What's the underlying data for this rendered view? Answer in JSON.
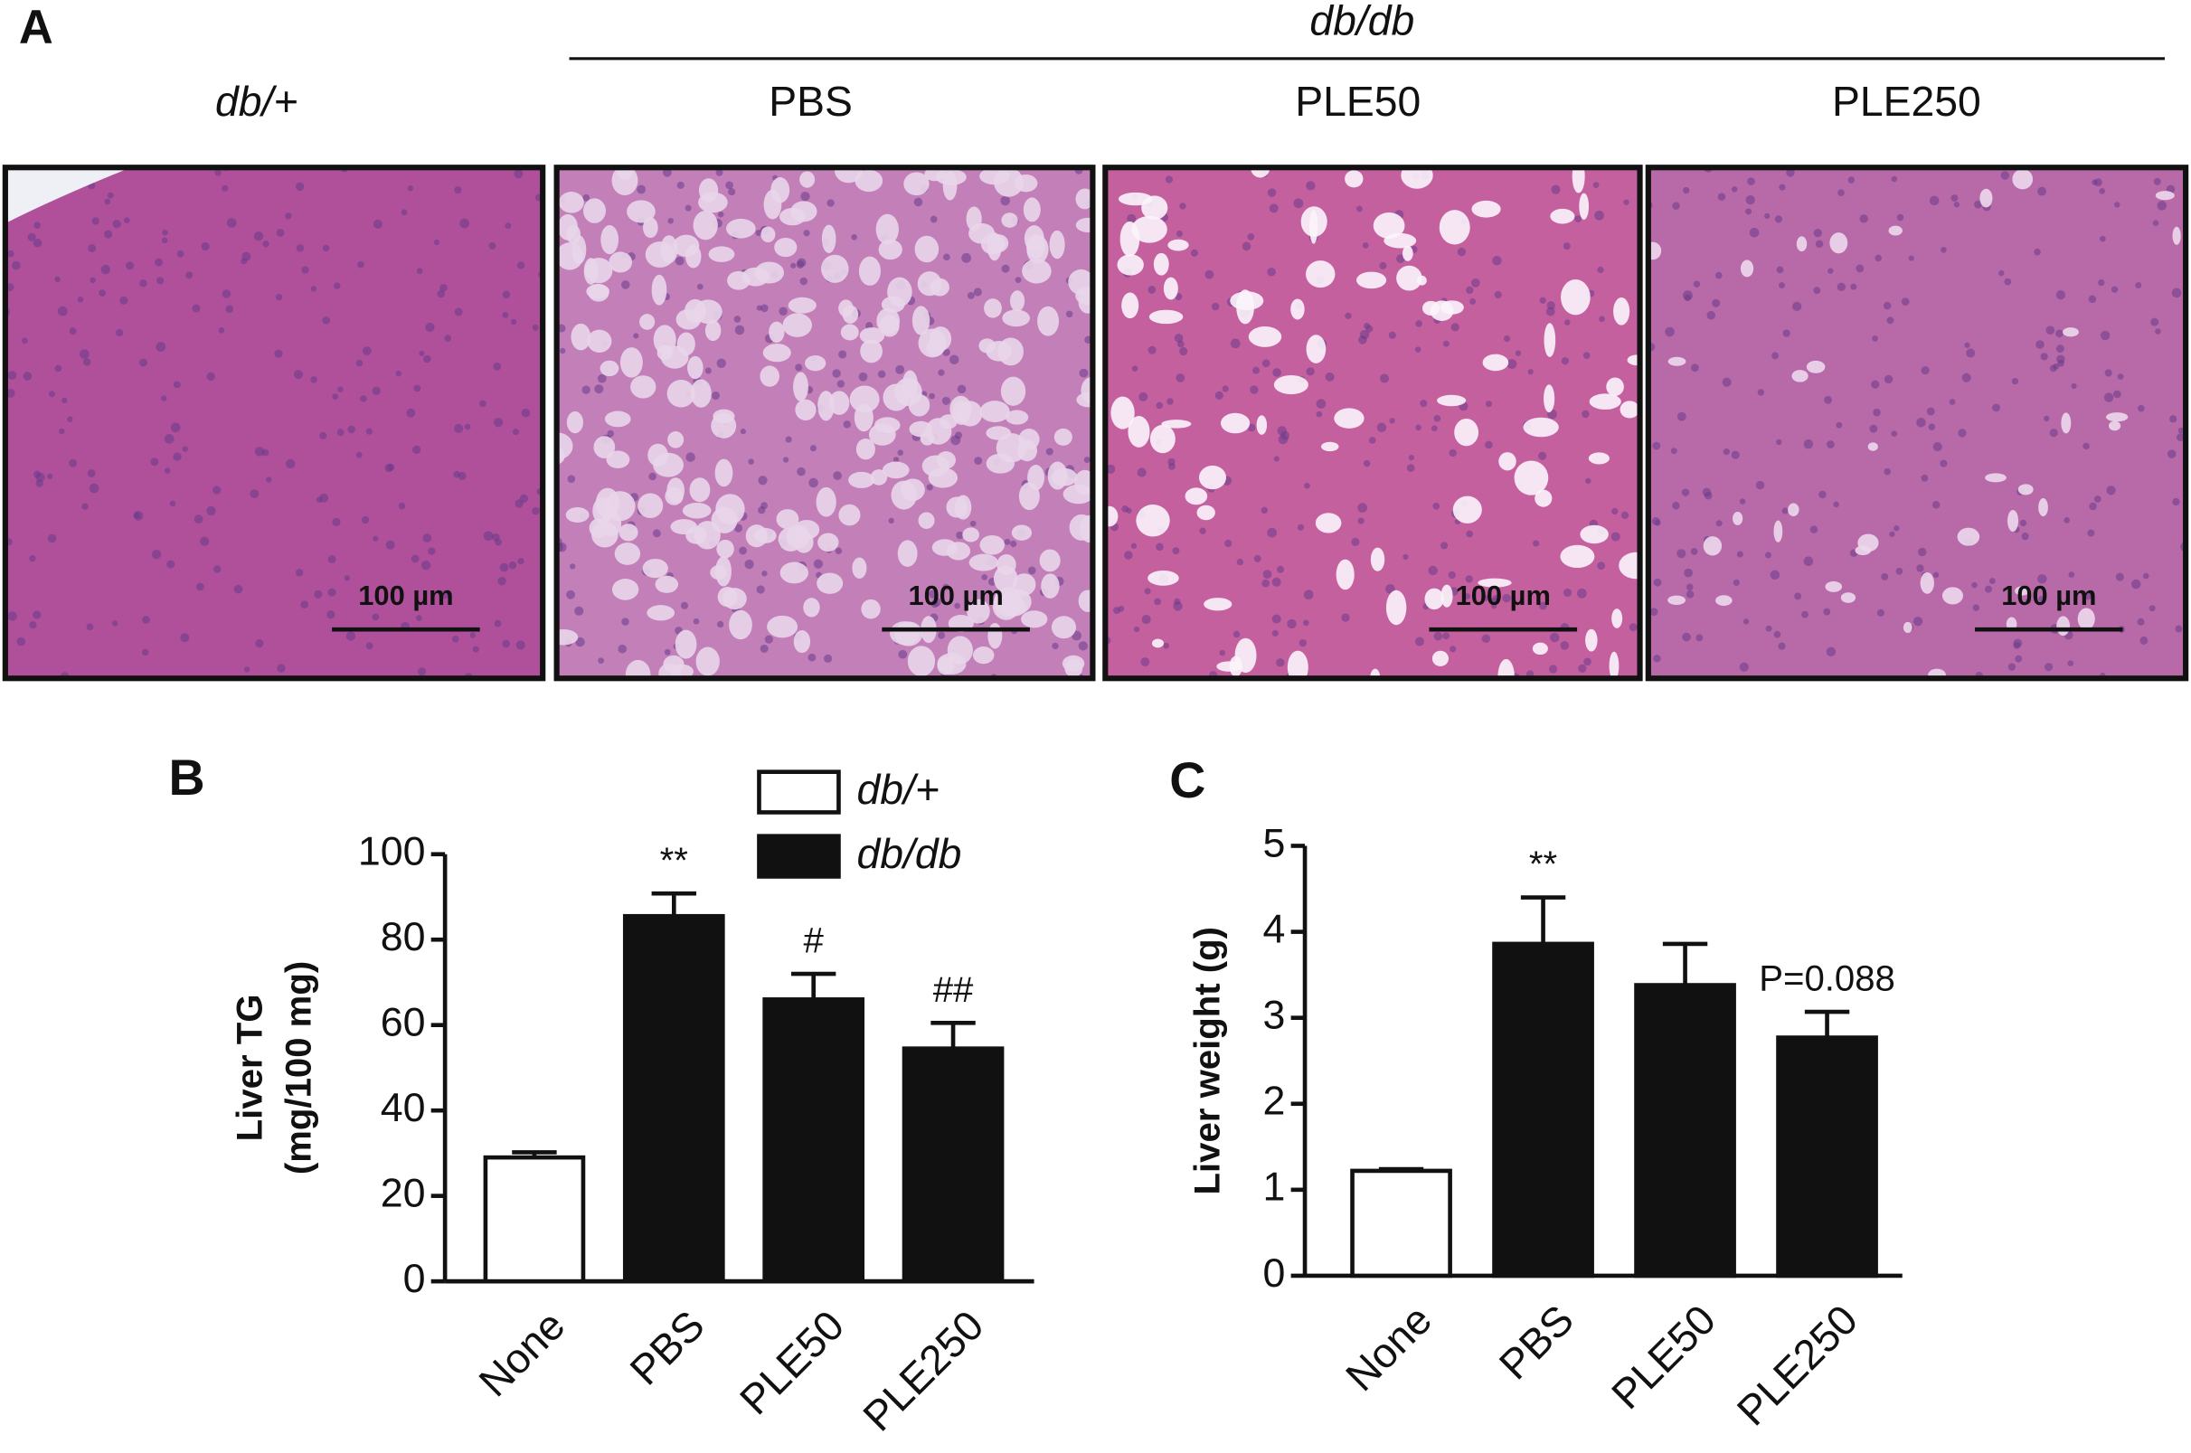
{
  "panel_a": {
    "panel": "A",
    "group": "db/db",
    "columns": [
      "db/+",
      "PBS",
      "PLE50",
      "PLE250"
    ],
    "scale_bars": [
      "100 µm",
      "100 µm",
      "100 µm",
      "100 µm"
    ]
  },
  "chart_data": [
    {
      "type": "bar",
      "panel": "B",
      "ylabel": [
        "Liver TG",
        "(mg/100 mg)"
      ],
      "categories": [
        "None",
        "PBS",
        "PLE50",
        "PLE250"
      ],
      "series": [
        {
          "name": "db/+",
          "color": "#ffffff",
          "values": [
            29,
            null,
            null,
            null
          ],
          "errors": [
            1.2,
            null,
            null,
            null
          ]
        },
        {
          "name": "db/db",
          "color": "#111111",
          "values": [
            null,
            85.5,
            66,
            54.5
          ],
          "errors": [
            null,
            5.3,
            6,
            6
          ]
        }
      ],
      "annotations": [
        null,
        "**",
        "#",
        "##"
      ],
      "ylim": [
        0,
        100
      ],
      "yticks": [
        0,
        20,
        40,
        60,
        80,
        100
      ],
      "legend": true
    },
    {
      "type": "bar",
      "panel": "C",
      "ylabel": "Liver weight (g)",
      "categories": [
        "None",
        "PBS",
        "PLE50",
        "PLE250"
      ],
      "series": [
        {
          "color": "#ffffff",
          "values": [
            1.22,
            null,
            null,
            null
          ],
          "errors": [
            0.02,
            null,
            null,
            null
          ]
        },
        {
          "color": "#111111",
          "values": [
            null,
            3.86,
            3.38,
            2.77
          ],
          "errors": [
            null,
            0.54,
            0.48,
            0.3
          ]
        }
      ],
      "annotations": [
        null,
        "**",
        null,
        "P=0.088"
      ],
      "ylim": [
        0,
        5
      ],
      "yticks": [
        0,
        1,
        2,
        3,
        4,
        5
      ],
      "legend": false
    }
  ]
}
